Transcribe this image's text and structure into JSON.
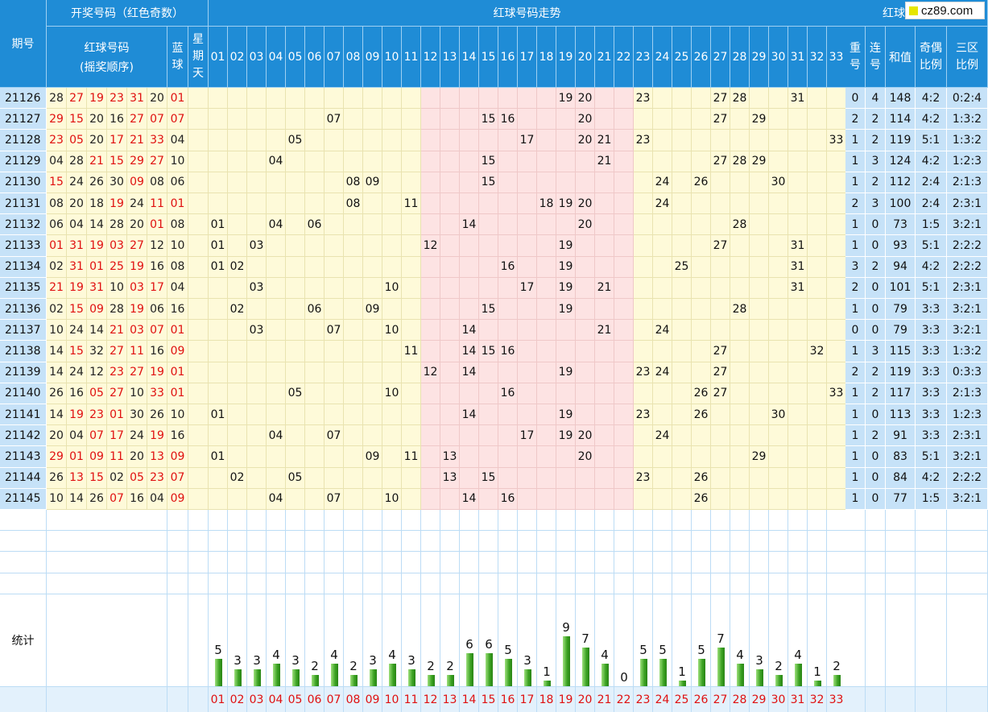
{
  "header": {
    "period_label": "期号",
    "draw_group": "开奖号码（红色奇数）",
    "red_order_line1": "红球号码",
    "red_order_line2": "(摇奖顺序)",
    "blue_label": "蓝球",
    "weekday_label": "星期天",
    "trend_title": "红球号码走势",
    "analysis_title": "红球号码分析",
    "repeat_label": "重号",
    "consec_label": "连号",
    "sum_label": "和值",
    "odd_even_label": "奇偶比例",
    "zone_label": "三区比例"
  },
  "logo_text": "cz89.com",
  "stats_label": "统计",
  "rows": [
    {
      "period": "21126",
      "reds": [
        "28",
        "27",
        "19",
        "23",
        "31",
        "20"
      ],
      "blue": "01",
      "repeat": "0",
      "consec": "4",
      "sum": "148",
      "oe": "4:2",
      "zone": "0:2:4"
    },
    {
      "period": "21127",
      "reds": [
        "29",
        "15",
        "20",
        "16",
        "27",
        "07"
      ],
      "blue": "07",
      "repeat": "2",
      "consec": "2",
      "sum": "114",
      "oe": "4:2",
      "zone": "1:3:2"
    },
    {
      "period": "21128",
      "reds": [
        "23",
        "05",
        "20",
        "17",
        "21",
        "33"
      ],
      "blue": "04",
      "repeat": "1",
      "consec": "2",
      "sum": "119",
      "oe": "5:1",
      "zone": "1:3:2"
    },
    {
      "period": "21129",
      "reds": [
        "04",
        "28",
        "21",
        "15",
        "29",
        "27"
      ],
      "blue": "10",
      "repeat": "1",
      "consec": "3",
      "sum": "124",
      "oe": "4:2",
      "zone": "1:2:3"
    },
    {
      "period": "21130",
      "reds": [
        "15",
        "24",
        "26",
        "30",
        "09",
        "08"
      ],
      "blue": "06",
      "repeat": "1",
      "consec": "2",
      "sum": "112",
      "oe": "2:4",
      "zone": "2:1:3"
    },
    {
      "period": "21131",
      "reds": [
        "08",
        "20",
        "18",
        "19",
        "24",
        "11"
      ],
      "blue": "01",
      "repeat": "2",
      "consec": "3",
      "sum": "100",
      "oe": "2:4",
      "zone": "2:3:1"
    },
    {
      "period": "21132",
      "reds": [
        "06",
        "04",
        "14",
        "28",
        "20",
        "01"
      ],
      "blue": "08",
      "repeat": "1",
      "consec": "0",
      "sum": "73",
      "oe": "1:5",
      "zone": "3:2:1"
    },
    {
      "period": "21133",
      "reds": [
        "01",
        "31",
        "19",
        "03",
        "27",
        "12"
      ],
      "blue": "10",
      "repeat": "1",
      "consec": "0",
      "sum": "93",
      "oe": "5:1",
      "zone": "2:2:2"
    },
    {
      "period": "21134",
      "reds": [
        "02",
        "31",
        "01",
        "25",
        "19",
        "16"
      ],
      "blue": "08",
      "repeat": "3",
      "consec": "2",
      "sum": "94",
      "oe": "4:2",
      "zone": "2:2:2"
    },
    {
      "period": "21135",
      "reds": [
        "21",
        "19",
        "31",
        "10",
        "03",
        "17"
      ],
      "blue": "04",
      "repeat": "2",
      "consec": "0",
      "sum": "101",
      "oe": "5:1",
      "zone": "2:3:1"
    },
    {
      "period": "21136",
      "reds": [
        "02",
        "15",
        "09",
        "28",
        "19",
        "06"
      ],
      "blue": "16",
      "repeat": "1",
      "consec": "0",
      "sum": "79",
      "oe": "3:3",
      "zone": "3:2:1"
    },
    {
      "period": "21137",
      "reds": [
        "10",
        "24",
        "14",
        "21",
        "03",
        "07"
      ],
      "blue": "01",
      "repeat": "0",
      "consec": "0",
      "sum": "79",
      "oe": "3:3",
      "zone": "3:2:1"
    },
    {
      "period": "21138",
      "reds": [
        "14",
        "15",
        "32",
        "27",
        "11",
        "16"
      ],
      "blue": "09",
      "repeat": "1",
      "consec": "3",
      "sum": "115",
      "oe": "3:3",
      "zone": "1:3:2"
    },
    {
      "period": "21139",
      "reds": [
        "14",
        "24",
        "12",
        "23",
        "27",
        "19"
      ],
      "blue": "01",
      "repeat": "2",
      "consec": "2",
      "sum": "119",
      "oe": "3:3",
      "zone": "0:3:3"
    },
    {
      "period": "21140",
      "reds": [
        "26",
        "16",
        "05",
        "27",
        "10",
        "33"
      ],
      "blue": "01",
      "repeat": "1",
      "consec": "2",
      "sum": "117",
      "oe": "3:3",
      "zone": "2:1:3"
    },
    {
      "period": "21141",
      "reds": [
        "14",
        "19",
        "23",
        "01",
        "30",
        "26"
      ],
      "blue": "10",
      "repeat": "1",
      "consec": "0",
      "sum": "113",
      "oe": "3:3",
      "zone": "1:2:3"
    },
    {
      "period": "21142",
      "reds": [
        "20",
        "04",
        "07",
        "17",
        "24",
        "19"
      ],
      "blue": "16",
      "repeat": "1",
      "consec": "2",
      "sum": "91",
      "oe": "3:3",
      "zone": "2:3:1"
    },
    {
      "period": "21143",
      "reds": [
        "29",
        "01",
        "09",
        "11",
        "20",
        "13"
      ],
      "blue": "09",
      "repeat": "1",
      "consec": "0",
      "sum": "83",
      "oe": "5:1",
      "zone": "3:2:1"
    },
    {
      "period": "21144",
      "reds": [
        "26",
        "13",
        "15",
        "02",
        "05",
        "23"
      ],
      "blue": "07",
      "repeat": "1",
      "consec": "0",
      "sum": "84",
      "oe": "4:2",
      "zone": "2:2:2"
    },
    {
      "period": "21145",
      "reds": [
        "10",
        "14",
        "26",
        "07",
        "16",
        "04"
      ],
      "blue": "09",
      "repeat": "1",
      "consec": "0",
      "sum": "77",
      "oe": "1:5",
      "zone": "3:2:1"
    }
  ],
  "chart_data": {
    "type": "bar",
    "categories": [
      "01",
      "02",
      "03",
      "04",
      "05",
      "06",
      "07",
      "08",
      "09",
      "10",
      "11",
      "12",
      "13",
      "14",
      "15",
      "16",
      "17",
      "18",
      "19",
      "20",
      "21",
      "22",
      "23",
      "24",
      "25",
      "26",
      "27",
      "28",
      "29",
      "30",
      "31",
      "32",
      "33"
    ],
    "values": [
      5,
      3,
      3,
      4,
      3,
      2,
      4,
      2,
      3,
      4,
      3,
      2,
      2,
      6,
      6,
      5,
      3,
      1,
      9,
      7,
      4,
      0,
      5,
      5,
      1,
      5,
      7,
      4,
      3,
      2,
      4,
      1,
      2
    ],
    "ylim": [
      0,
      9
    ],
    "title": "",
    "xlabel": "",
    "ylabel": ""
  }
}
